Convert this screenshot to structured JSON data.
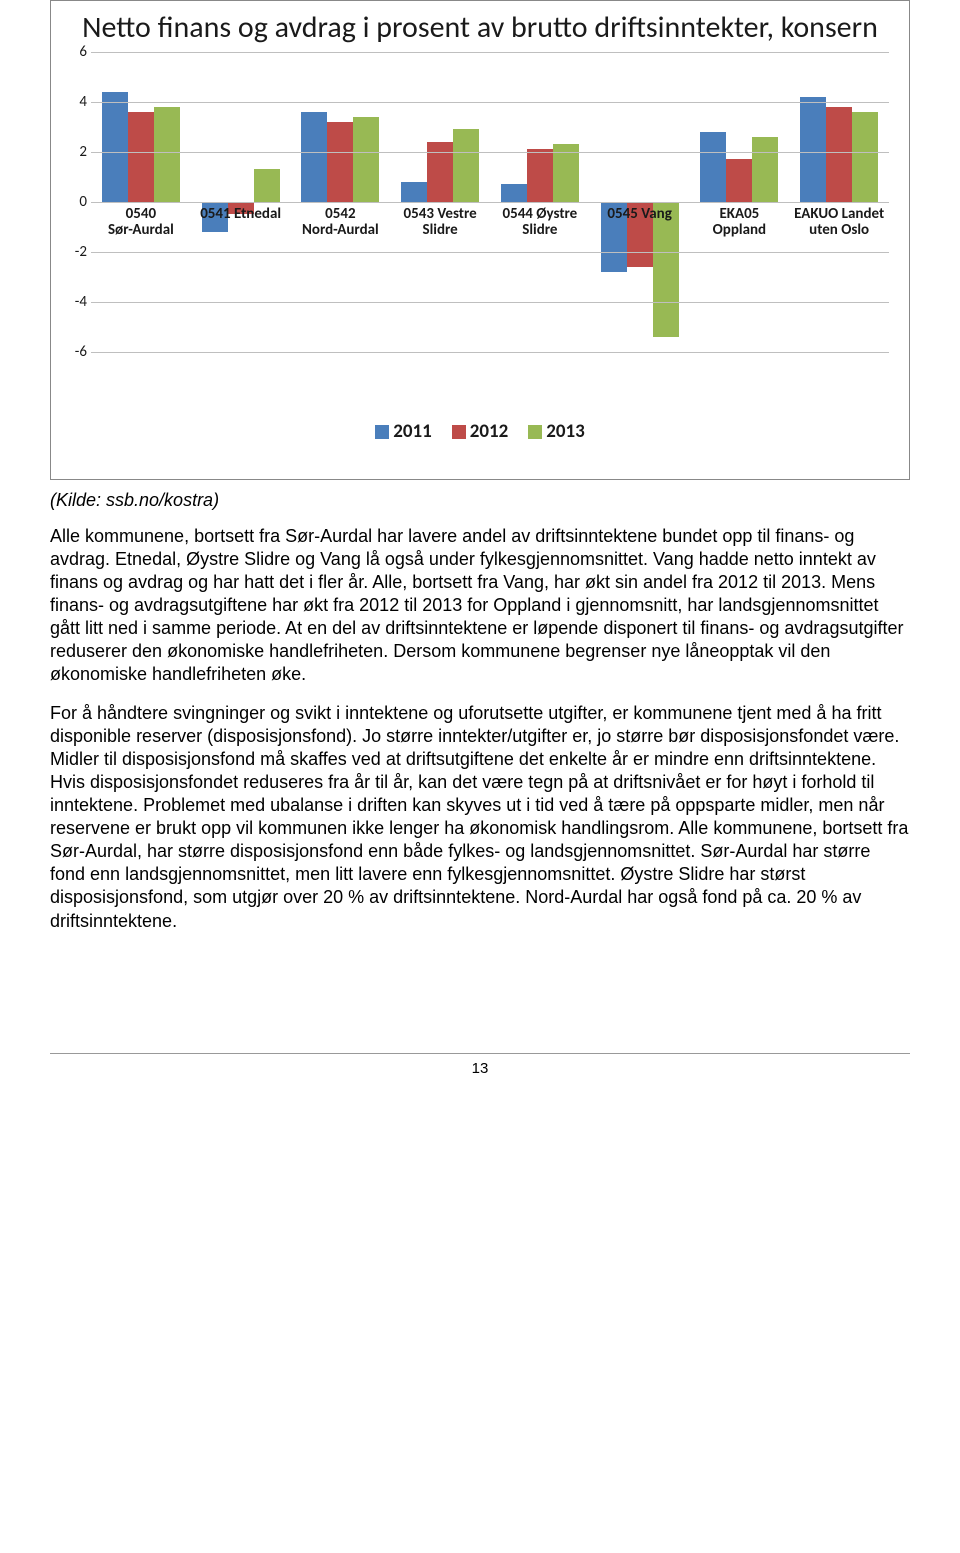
{
  "chart": {
    "type": "bar",
    "title": "Netto finans og avdrag i prosent av brutto driftsinntekter, konsern",
    "title_fontsize": 30,
    "ylim": [
      -6,
      6
    ],
    "ytick_step": 2,
    "yticks": [
      -6,
      -4,
      -2,
      0,
      2,
      4,
      6
    ],
    "grid_color": "#bfbfbf",
    "background_color": "#ffffff",
    "categories": [
      "0540 Sør-Aurdal",
      "0541 Etnedal",
      "0542 Nord-Aurdal",
      "0543 Vestre Slidre",
      "0544 Øystre Slidre",
      "0545 Vang",
      "EKA05 Oppland",
      "EAKUO Landet uten Oslo"
    ],
    "series": [
      {
        "name": "2011",
        "color": "#4a7ebb",
        "values": [
          4.4,
          -1.2,
          3.6,
          0.8,
          0.7,
          -2.8,
          2.8,
          4.2
        ]
      },
      {
        "name": "2012",
        "color": "#be4b48",
        "values": [
          3.6,
          -0.5,
          3.2,
          2.4,
          2.1,
          -2.6,
          1.7,
          3.8
        ]
      },
      {
        "name": "2013",
        "color": "#98b954",
        "values": [
          3.8,
          1.3,
          3.4,
          2.9,
          2.3,
          -5.4,
          2.6,
          3.6
        ]
      }
    ],
    "bar_width": 0.26,
    "label_fontsize": 15,
    "legend_fontsize": 19
  },
  "source": "(Kilde: ssb.no/kostra)",
  "para1": "Alle kommunene, bortsett fra Sør-Aurdal har lavere andel av driftsinntektene bundet opp til finans- og avdrag. Etnedal, Øystre Slidre og Vang lå også under fylkesgjennomsnittet. Vang hadde netto inntekt av finans og avdrag og har hatt det i fler år. Alle, bortsett fra Vang, har økt sin andel fra 2012 til 2013. Mens finans- og avdragsutgiftene har økt fra 2012 til 2013 for Oppland i gjennomsnitt, har landsgjennomsnittet gått litt ned i samme periode. At en del av driftsinntektene er løpende disponert til finans- og avdragsutgifter reduserer den økonomiske handlefriheten. Dersom kommunene begrenser nye låneopptak vil den økonomiske handlefriheten øke.",
  "para2": "For å håndtere svingninger og svikt i inntektene og uforutsette utgifter, er kommunene tjent med å ha fritt disponible reserver (disposisjonsfond). Jo større inntekter/utgifter er, jo større bør disposisjonsfondet være. Midler til disposisjonsfond må skaffes ved at driftsutgiftene det enkelte år er mindre enn driftsinntektene. Hvis disposisjonsfondet reduseres fra år til år, kan det være tegn på at driftsnivået er for høyt i forhold til inntektene. Problemet med ubalanse i driften kan skyves ut i tid ved å tære på oppsparte midler, men når reservene er brukt opp vil kommunen ikke lenger ha økonomisk handlingsrom. Alle kommunene, bortsett fra Sør-Aurdal, har større disposisjonsfond enn både fylkes- og landsgjennomsnittet. Sør-Aurdal har større fond enn landsgjennomsnittet, men litt lavere enn fylkesgjennomsnittet. Øystre Slidre har størst disposisjonsfond, som utgjør over 20 % av driftsinntektene. Nord-Aurdal har også fond på ca. 20 % av driftsinntektene.",
  "page_number": "13"
}
